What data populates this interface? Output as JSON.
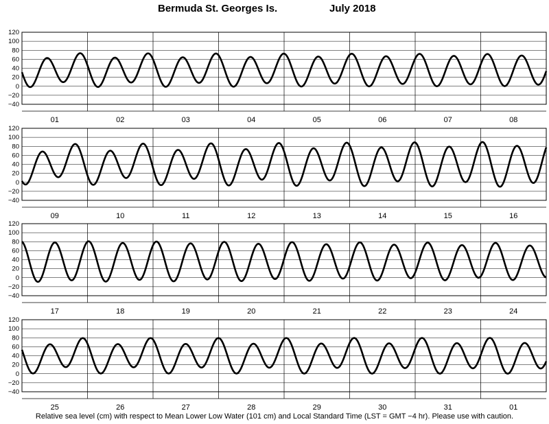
{
  "header": {
    "station": "Bermuda St. Georges Is.",
    "month_year": "July   2018"
  },
  "footer": {
    "caption": "Relative sea level (cm) with respect to Mean Lower Low Water (101 cm) and Local Standard Time (LST = GMT −4 hr). Please use with caution."
  },
  "chart_data": {
    "type": "line",
    "title": "Bermuda St. Georges Is.          July   2018",
    "ylim": [
      -40,
      120
    ],
    "yticks": [
      "−40",
      "−20",
      "0",
      "20",
      "40",
      "60",
      "80",
      "100",
      "120"
    ],
    "grid": true,
    "series_color": "#000000",
    "panels": [
      {
        "days": [
          "01",
          "02",
          "03",
          "04",
          "05",
          "06",
          "07",
          "08"
        ],
        "wave": {
          "mean": 36,
          "a_start": 32,
          "a_end": 34,
          "b_start": 8,
          "b_end": 2,
          "phase": 1.7
        }
      },
      {
        "days": [
          "09",
          "10",
          "11",
          "12",
          "13",
          "14",
          "15",
          "16"
        ],
        "wave": {
          "mean": 40,
          "a_start": 36,
          "a_end": 46,
          "b_start": 12,
          "b_end": 6,
          "phase": 2.6
        }
      },
      {
        "days": [
          "17",
          "18",
          "19",
          "20",
          "21",
          "22",
          "23",
          "24"
        ],
        "wave": {
          "mean": 36,
          "a_start": 44,
          "a_end": 38,
          "b_start": 2,
          "b_end": 4,
          "phase": 0.2
        }
      },
      {
        "days": [
          "25",
          "26",
          "27",
          "28",
          "29",
          "30",
          "31",
          "01"
        ],
        "wave": {
          "mean": 40,
          "a_start": 32,
          "a_end": 34,
          "b_start": 10,
          "b_end": 8,
          "phase": 1.2
        }
      }
    ]
  }
}
